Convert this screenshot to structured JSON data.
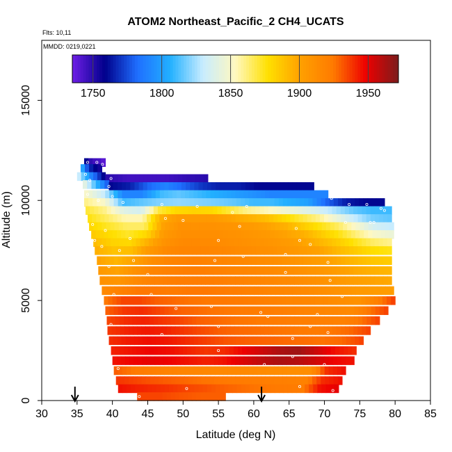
{
  "chart_data": {
    "type": "heatmap",
    "title": "ATOM2 Northeast_Pacific_2 CH4_UCATS",
    "subtitle_flights": "Flts: 10,11",
    "subtitle_dates": "MMDD: 0219,0221",
    "xlabel": "Latitude (deg N)",
    "ylabel": "Altitude (m)",
    "xlim": [
      30,
      85
    ],
    "ylim": [
      0,
      18000
    ],
    "x_ticks": [
      "30",
      "35",
      "40",
      "45",
      "50",
      "55",
      "60",
      "65",
      "70",
      "75",
      "80",
      "85"
    ],
    "y_ticks": [
      "0",
      "5000",
      "10000",
      "15000"
    ],
    "colorbar": {
      "range": [
        1735,
        1972
      ],
      "ticks": [
        "1750",
        "1800",
        "1850",
        "1900",
        "1950"
      ],
      "tick_values": [
        1750,
        1800,
        1850,
        1900,
        1950
      ],
      "stops": [
        "#6f1ee6",
        "#00008b",
        "#1f6fff",
        "#22b0ff",
        "#c8ecff",
        "#fff8c0",
        "#ffe000",
        "#ffa000",
        "#ff7a00",
        "#ee0000",
        "#7b1c1c"
      ]
    },
    "flight_markers_latitude": [
      34.7,
      61.1
    ],
    "layers": [
      {
        "alt": 11900,
        "lat_start": 36.0,
        "lat_end": 39.0,
        "values": [
          1760,
          1745,
          1745,
          1740
        ]
      },
      {
        "alt": 11600,
        "lat_start": 35.5,
        "lat_end": 38.5,
        "values": [
          1800,
          1770,
          1760,
          1755
        ]
      },
      {
        "alt": 11200,
        "lat_start": 35.0,
        "lat_end": 39.0,
        "values": [
          1830,
          1810,
          1790,
          1775,
          1760
        ]
      },
      {
        "alt": 11100,
        "lat_start": 39.0,
        "lat_end": 53.5,
        "values": [
          1750,
          1745,
          1745,
          1745,
          1748,
          1750
        ]
      },
      {
        "alt": 10800,
        "lat_start": 35.8,
        "lat_end": 39.5,
        "values": [
          1840,
          1820,
          1800,
          1780
        ]
      },
      {
        "alt": 10700,
        "lat_start": 39.5,
        "lat_end": 68.5,
        "values": [
          1760,
          1765,
          1780,
          1790,
          1780,
          1770,
          1765,
          1765,
          1760,
          1760,
          1760,
          1760
        ]
      },
      {
        "alt": 10300,
        "lat_start": 36.0,
        "lat_end": 70.5,
        "values": [
          1850,
          1830,
          1790,
          1790,
          1810,
          1815,
          1810,
          1805,
          1800,
          1795,
          1790,
          1790,
          1790,
          1790
        ]
      },
      {
        "alt": 9900,
        "lat_start": 36.0,
        "lat_end": 78.5,
        "values": [
          1860,
          1850,
          1810,
          1815,
          1820,
          1822,
          1820,
          1818,
          1815,
          1810,
          1810,
          1805,
          1800,
          1780,
          1765,
          1760,
          1760
        ]
      },
      {
        "alt": 9500,
        "lat_start": 36.2,
        "lat_end": 79.5,
        "values": [
          1870,
          1860,
          1840,
          1835,
          1870,
          1880,
          1882,
          1880,
          1870,
          1860,
          1855,
          1848,
          1842,
          1835,
          1825,
          1815,
          1810,
          1810
        ]
      },
      {
        "alt": 9100,
        "lat_start": 36.5,
        "lat_end": 79.5,
        "values": [
          1875,
          1865,
          1855,
          1855,
          1895,
          1905,
          1905,
          1905,
          1900,
          1895,
          1890,
          1880,
          1870,
          1860,
          1845,
          1830,
          1818,
          1815
        ]
      },
      {
        "alt": 8700,
        "lat_start": 36.7,
        "lat_end": 79.8,
        "values": [
          1880,
          1872,
          1865,
          1865,
          1900,
          1910,
          1910,
          1910,
          1908,
          1905,
          1900,
          1895,
          1885,
          1875,
          1865,
          1850,
          1835,
          1830
        ]
      },
      {
        "alt": 8300,
        "lat_start": 37.0,
        "lat_end": 79.8,
        "values": [
          1885,
          1878,
          1872,
          1880,
          1905,
          1912,
          1912,
          1912,
          1910,
          1908,
          1905,
          1900,
          1895,
          1885,
          1875,
          1862,
          1850,
          1845
        ]
      },
      {
        "alt": 7900,
        "lat_start": 37.3,
        "lat_end": 79.5,
        "values": [
          1890,
          1882,
          1880,
          1895,
          1910,
          1915,
          1915,
          1914,
          1912,
          1910,
          1908,
          1905,
          1900,
          1893,
          1885,
          1875,
          1865,
          1860
        ]
      },
      {
        "alt": 7500,
        "lat_start": 37.5,
        "lat_end": 79.5,
        "values": [
          1895,
          1888,
          1890,
          1905,
          1915,
          1918,
          1918,
          1917,
          1915,
          1913,
          1911,
          1908,
          1904,
          1900,
          1892,
          1885,
          1878,
          1875
        ]
      },
      {
        "alt": 7000,
        "lat_start": 37.8,
        "lat_end": 79.5,
        "values": [
          1900,
          1893,
          1900,
          1912,
          1918,
          1920,
          1920,
          1918,
          1917,
          1915,
          1913,
          1910,
          1907,
          1903,
          1898,
          1892,
          1887,
          1885
        ]
      },
      {
        "alt": 6500,
        "lat_start": 38.0,
        "lat_end": 79.5,
        "values": [
          1905,
          1900,
          1910,
          1918,
          1920,
          1922,
          1922,
          1920,
          1918,
          1917,
          1915,
          1913,
          1910,
          1907,
          1903,
          1898,
          1895,
          1893
        ]
      },
      {
        "alt": 6000,
        "lat_start": 38.2,
        "lat_end": 79.5,
        "values": [
          1910,
          1908,
          1915,
          1920,
          1922,
          1923,
          1923,
          1922,
          1920,
          1918,
          1917,
          1915,
          1913,
          1910,
          1906,
          1902,
          1900,
          1898
        ]
      },
      {
        "alt": 5500,
        "lat_start": 38.5,
        "lat_end": 79.8,
        "values": [
          1915,
          1920,
          1925,
          1925,
          1924,
          1925,
          1925,
          1924,
          1922,
          1920,
          1918,
          1917,
          1915,
          1912,
          1909,
          1906,
          1904,
          1903
        ]
      },
      {
        "alt": 5000,
        "lat_start": 38.8,
        "lat_end": 80.0,
        "values": [
          1925,
          1935,
          1935,
          1930,
          1928,
          1926,
          1925,
          1925,
          1924,
          1922,
          1920,
          1918,
          1917,
          1915,
          1912,
          1910,
          1920,
          1935
        ]
      },
      {
        "alt": 4500,
        "lat_start": 39.0,
        "lat_end": 79.0,
        "values": [
          1930,
          1938,
          1940,
          1935,
          1930,
          1928,
          1926,
          1925,
          1924,
          1923,
          1922,
          1920,
          1918,
          1917,
          1915,
          1925,
          1935
        ]
      },
      {
        "alt": 4000,
        "lat_start": 39.2,
        "lat_end": 77.8,
        "values": [
          1935,
          1940,
          1942,
          1938,
          1935,
          1930,
          1928,
          1926,
          1925,
          1924,
          1923,
          1922,
          1921,
          1920,
          1925,
          1935
        ]
      },
      {
        "alt": 3500,
        "lat_start": 39.3,
        "lat_end": 76.5,
        "values": [
          1938,
          1942,
          1944,
          1942,
          1938,
          1934,
          1930,
          1928,
          1927,
          1926,
          1925,
          1924,
          1925,
          1928,
          1935
        ]
      },
      {
        "alt": 3000,
        "lat_start": 39.5,
        "lat_end": 75.5,
        "values": [
          1940,
          1944,
          1946,
          1944,
          1940,
          1936,
          1932,
          1930,
          1929,
          1928,
          1927,
          1926,
          1928,
          1935
        ]
      },
      {
        "alt": 2500,
        "lat_start": 39.8,
        "lat_end": 74.5,
        "values": [
          1942,
          1945,
          1948,
          1946,
          1942,
          1938,
          1940,
          1948,
          1955,
          1962,
          1965,
          1955,
          1945,
          1940
        ]
      },
      {
        "alt": 2000,
        "lat_start": 40.0,
        "lat_end": 74.2,
        "values": [
          1945,
          1948,
          1950,
          1948,
          1945,
          1942,
          1945,
          1952,
          1958,
          1962,
          1960,
          1955,
          1948,
          1945
        ]
      },
      {
        "alt": 1500,
        "lat_start": 40.2,
        "lat_end": 73.0,
        "values": [
          1930,
          1925,
          1922,
          1920,
          1918,
          1917,
          1916,
          1915,
          1915,
          1914,
          1913,
          1912,
          1912,
          1940,
          1945
        ]
      },
      {
        "alt": 1000,
        "lat_start": 40.5,
        "lat_end": 72.5,
        "values": [
          1938,
          1935,
          1932,
          1930,
          1928,
          1926,
          1925,
          1924,
          1923,
          1922,
          1921,
          1920,
          1940,
          1945
        ]
      },
      {
        "alt": 600,
        "lat_start": 40.8,
        "lat_end": 72.0,
        "values": [
          1945,
          1942,
          1940,
          1938,
          1935,
          1933,
          1930,
          1928,
          1926,
          1925,
          1924,
          1923,
          1945,
          1950
        ]
      },
      {
        "alt": 200,
        "lat_start": 43.5,
        "lat_end": 56.0,
        "values": [
          1935,
          1935,
          1932,
          1930,
          1930
        ]
      }
    ],
    "sample_points": [
      [
        36.5,
        11900
      ],
      [
        37.8,
        11900
      ],
      [
        38.6,
        11800
      ],
      [
        36.2,
        11300
      ],
      [
        36.8,
        11000
      ],
      [
        39.8,
        11100
      ],
      [
        39.5,
        10700
      ],
      [
        36.5,
        10300
      ],
      [
        38.0,
        10000
      ],
      [
        40.0,
        10200
      ],
      [
        41.5,
        9900
      ],
      [
        47.0,
        9800
      ],
      [
        52.0,
        9700
      ],
      [
        59.0,
        9700
      ],
      [
        69.0,
        10700
      ],
      [
        71.0,
        10100
      ],
      [
        73.5,
        9800
      ],
      [
        76.0,
        9800
      ],
      [
        78.0,
        9600
      ],
      [
        78.5,
        9500
      ],
      [
        47.5,
        9100
      ],
      [
        57.0,
        9400
      ],
      [
        37.2,
        8800
      ],
      [
        39.0,
        8500
      ],
      [
        50.0,
        9000
      ],
      [
        58.0,
        8700
      ],
      [
        66.0,
        8600
      ],
      [
        73.0,
        8900
      ],
      [
        76.5,
        8900
      ],
      [
        77.0,
        8900
      ],
      [
        37.5,
        8000
      ],
      [
        42.5,
        8100
      ],
      [
        55.0,
        8000
      ],
      [
        66.5,
        8000
      ],
      [
        68.0,
        7800
      ],
      [
        38.5,
        7700
      ],
      [
        41.0,
        7500
      ],
      [
        43.0,
        7000
      ],
      [
        54.5,
        7000
      ],
      [
        58.5,
        7200
      ],
      [
        64.5,
        7300
      ],
      [
        70.5,
        6900
      ],
      [
        39.5,
        6700
      ],
      [
        45.0,
        6300
      ],
      [
        64.5,
        6400
      ],
      [
        70.8,
        6000
      ],
      [
        40.2,
        5300
      ],
      [
        45.5,
        5300
      ],
      [
        49.0,
        4600
      ],
      [
        54.0,
        4700
      ],
      [
        61.0,
        4400
      ],
      [
        72.5,
        5200
      ],
      [
        39.8,
        3800
      ],
      [
        55.0,
        3700
      ],
      [
        62.0,
        4200
      ],
      [
        68.0,
        3700
      ],
      [
        69.0,
        4300
      ],
      [
        47.0,
        3300
      ],
      [
        70.5,
        3400
      ],
      [
        55.0,
        2500
      ],
      [
        65.5,
        3100
      ],
      [
        65.5,
        2200
      ],
      [
        40.8,
        1600
      ],
      [
        61.5,
        1800
      ],
      [
        70.0,
        1800
      ],
      [
        50.5,
        600
      ],
      [
        66.5,
        700
      ],
      [
        71.2,
        500
      ],
      [
        43.8,
        200
      ]
    ]
  }
}
